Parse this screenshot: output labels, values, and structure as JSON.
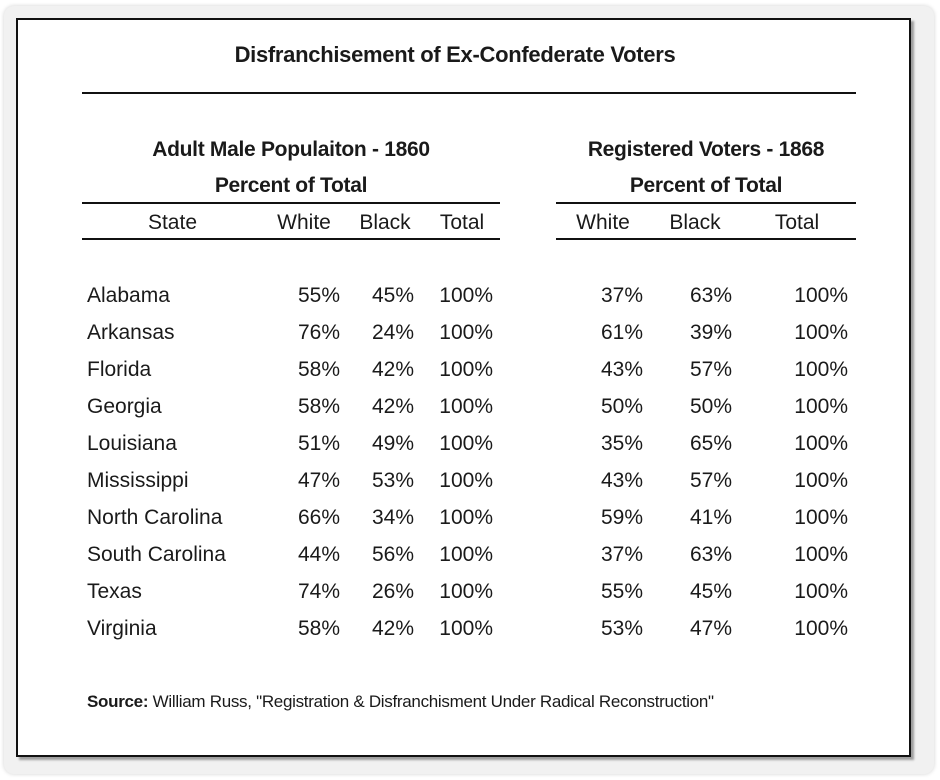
{
  "title": "Disfranchisement of Ex-Confederate Voters",
  "group_left": {
    "line1": "Adult Male Populaiton - 1860",
    "line2": "Percent of Total"
  },
  "group_right": {
    "line1": "Registered Voters - 1868",
    "line2": "Percent of Total"
  },
  "columns": {
    "state": "State",
    "white": "White",
    "black": "Black",
    "total": "Total"
  },
  "rows": [
    {
      "state": "Alabama",
      "w1860": "55%",
      "b1860": "45%",
      "t1860": "100%",
      "w1868": "37%",
      "b1868": "63%",
      "t1868": "100%"
    },
    {
      "state": "Arkansas",
      "w1860": "76%",
      "b1860": "24%",
      "t1860": "100%",
      "w1868": "61%",
      "b1868": "39%",
      "t1868": "100%"
    },
    {
      "state": "Florida",
      "w1860": "58%",
      "b1860": "42%",
      "t1860": "100%",
      "w1868": "43%",
      "b1868": "57%",
      "t1868": "100%"
    },
    {
      "state": "Georgia",
      "w1860": "58%",
      "b1860": "42%",
      "t1860": "100%",
      "w1868": "50%",
      "b1868": "50%",
      "t1868": "100%"
    },
    {
      "state": "Louisiana",
      "w1860": "51%",
      "b1860": "49%",
      "t1860": "100%",
      "w1868": "35%",
      "b1868": "65%",
      "t1868": "100%"
    },
    {
      "state": "Mississippi",
      "w1860": "47%",
      "b1860": "53%",
      "t1860": "100%",
      "w1868": "43%",
      "b1868": "57%",
      "t1868": "100%"
    },
    {
      "state": "North Carolina",
      "w1860": "66%",
      "b1860": "34%",
      "t1860": "100%",
      "w1868": "59%",
      "b1868": "41%",
      "t1868": "100%"
    },
    {
      "state": "South Carolina",
      "w1860": "44%",
      "b1860": "56%",
      "t1860": "100%",
      "w1868": "37%",
      "b1868": "63%",
      "t1868": "100%"
    },
    {
      "state": "Texas",
      "w1860": "74%",
      "b1860": "26%",
      "t1860": "100%",
      "w1868": "55%",
      "b1868": "45%",
      "t1868": "100%"
    },
    {
      "state": "Virginia",
      "w1860": "58%",
      "b1860": "42%",
      "t1860": "100%",
      "w1868": "53%",
      "b1868": "47%",
      "t1868": "100%"
    }
  ],
  "source": {
    "label": "Source:",
    "text": " William Russ, \"Registration & Disfranchisment Under Radical Reconstruction\""
  }
}
